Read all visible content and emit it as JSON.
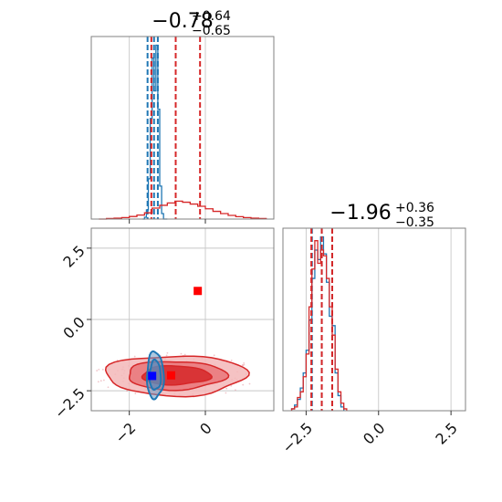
{
  "colors": {
    "series_a": "#1f77b4",
    "series_b": "#d62728",
    "marker_a": "#0000ff",
    "marker_b": "#ff0000",
    "grid": "#c8c8c8",
    "frame": "#808080"
  },
  "chart_data": [
    {
      "type": "histogram",
      "panel": "marginal-param-1",
      "title_main": "−0.78",
      "title_sup": "+0.64",
      "title_sub": "−0.65",
      "xlim": [
        -3.0,
        1.8
      ],
      "xticks": [
        -2,
        0
      ],
      "grid": true,
      "series": [
        {
          "color": "#1f77b4",
          "bins": [
            -1.65,
            -1.6,
            -1.55,
            -1.5,
            -1.45,
            -1.4,
            -1.35,
            -1.3,
            -1.25,
            -1.2,
            -1.15,
            -1.1
          ],
          "counts": [
            0,
            0.01,
            0.05,
            0.22,
            0.55,
            0.88,
            0.7,
            0.95,
            0.6,
            0.18,
            0.03,
            0.0
          ],
          "quantiles": [
            -1.52,
            -1.35,
            -1.25
          ]
        },
        {
          "color": "#d62728",
          "bins": [
            -2.8,
            -2.6,
            -2.4,
            -2.2,
            -2.0,
            -1.8,
            -1.6,
            -1.4,
            -1.2,
            -1.0,
            -0.8,
            -0.6,
            -0.4,
            -0.2,
            0.0,
            0.2,
            0.4,
            0.6,
            0.8,
            1.0,
            1.2,
            1.4,
            1.6
          ],
          "counts": [
            0.0,
            0.003,
            0.005,
            0.008,
            0.014,
            0.022,
            0.034,
            0.06,
            0.075,
            0.088,
            0.098,
            0.092,
            0.082,
            0.07,
            0.056,
            0.042,
            0.03,
            0.02,
            0.013,
            0.008,
            0.005,
            0.003
          ],
          "quantiles": [
            -1.42,
            -0.78,
            -0.14
          ]
        }
      ]
    },
    {
      "type": "histogram",
      "panel": "marginal-param-2",
      "title_main": "−1.96",
      "title_sup": "+0.36",
      "title_sub": "−0.35",
      "xlim": [
        -3.3,
        3.0
      ],
      "xticks": [
        -2.5,
        0.0,
        2.5
      ],
      "xtick_labels": [
        "−2.5",
        "0.0",
        "2.5"
      ],
      "grid": true,
      "series": [
        {
          "color": "#1f77b4",
          "bins": [
            -3.0,
            -2.9,
            -2.8,
            -2.7,
            -2.6,
            -2.5,
            -2.4,
            -2.3,
            -2.2,
            -2.1,
            -2.0,
            -1.9,
            -1.8,
            -1.7,
            -1.6,
            -1.5,
            -1.4,
            -1.3,
            -1.2
          ],
          "counts": [
            0.01,
            0.03,
            0.06,
            0.12,
            0.2,
            0.32,
            0.48,
            0.7,
            0.85,
            0.8,
            0.92,
            0.83,
            0.68,
            0.5,
            0.45,
            0.2,
            0.08,
            0.02
          ],
          "quantiles": [
            -2.3,
            -1.96,
            -1.6
          ]
        },
        {
          "color": "#d62728",
          "bins": [
            -3.0,
            -2.9,
            -2.8,
            -2.7,
            -2.6,
            -2.5,
            -2.4,
            -2.3,
            -2.2,
            -2.1,
            -2.0,
            -1.9,
            -1.8,
            -1.7,
            -1.6,
            -1.5,
            -1.4,
            -1.3,
            -1.2,
            -1.1
          ],
          "counts": [
            0.01,
            0.02,
            0.07,
            0.1,
            0.18,
            0.3,
            0.55,
            0.75,
            0.9,
            0.78,
            0.85,
            0.82,
            0.7,
            0.55,
            0.4,
            0.22,
            0.1,
            0.04,
            0.01
          ],
          "quantiles": [
            -2.32,
            -1.96,
            -1.6
          ]
        }
      ]
    },
    {
      "type": "contour",
      "panel": "joint-param-1-param-2",
      "xlim": [
        -3.0,
        1.8
      ],
      "ylim": [
        -3.2,
        3.2
      ],
      "xticks": [
        -2,
        0
      ],
      "yticks": [
        -2.5,
        0.0,
        2.5
      ],
      "ytick_labels": [
        "−2.5",
        "0.0",
        "2.5"
      ],
      "grid": true,
      "series": [
        {
          "color": "#d62728",
          "center": [
            -0.78,
            -1.96
          ],
          "spread": [
            [
              1.85,
              0.7
            ],
            [
              1.3,
              0.5
            ],
            [
              0.9,
              0.33
            ]
          ]
        },
        {
          "color": "#1f77b4",
          "center": [
            -1.32,
            -1.96
          ],
          "spread": [
            [
              0.22,
              0.82
            ],
            [
              0.15,
              0.52
            ]
          ]
        }
      ],
      "markers": [
        {
          "color": "#0000ff",
          "x": -1.4,
          "y": -1.98
        },
        {
          "color": "#ff0000",
          "x": -0.9,
          "y": -1.96
        },
        {
          "color": "#ff0000",
          "x": -0.2,
          "y": 1.0
        }
      ]
    }
  ]
}
